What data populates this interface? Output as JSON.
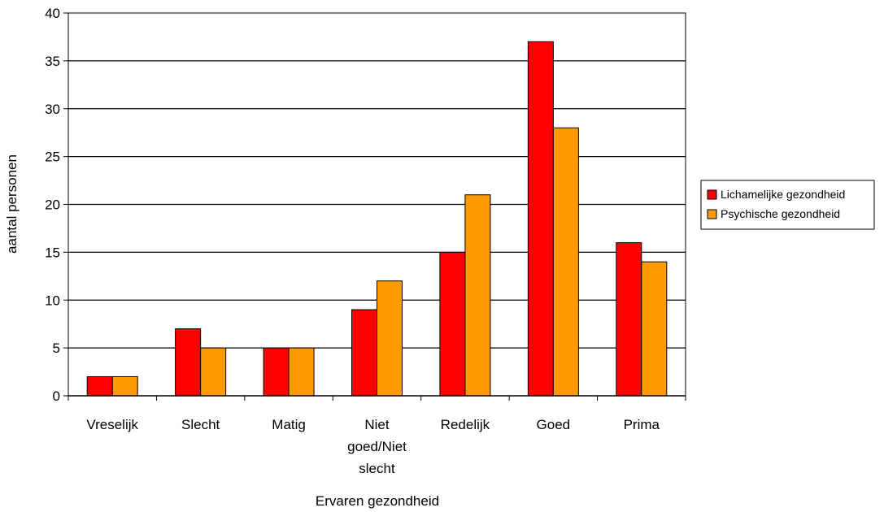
{
  "chart_data": {
    "type": "bar",
    "title": "",
    "xlabel": "Ervaren gezondheid",
    "ylabel": "aantal personen",
    "ylim": [
      0,
      40
    ],
    "yticks": [
      0,
      5,
      10,
      15,
      20,
      25,
      30,
      35,
      40
    ],
    "grid": true,
    "legend_position": "right",
    "categories": [
      [
        "Vreselijk"
      ],
      [
        "Slecht"
      ],
      [
        "Matig"
      ],
      [
        "Niet",
        "goed/Niet",
        "slecht"
      ],
      [
        "Redelijk"
      ],
      [
        "Goed"
      ],
      [
        "Prima"
      ]
    ],
    "series": [
      {
        "name": "Lichamelijke gezondheid",
        "color": "#ff0000",
        "values": [
          2,
          7,
          5,
          9,
          15,
          37,
          16
        ]
      },
      {
        "name": "Psychische gezondheid",
        "color": "#ff9900",
        "values": [
          2,
          5,
          5,
          12,
          21,
          28,
          14
        ]
      }
    ]
  }
}
